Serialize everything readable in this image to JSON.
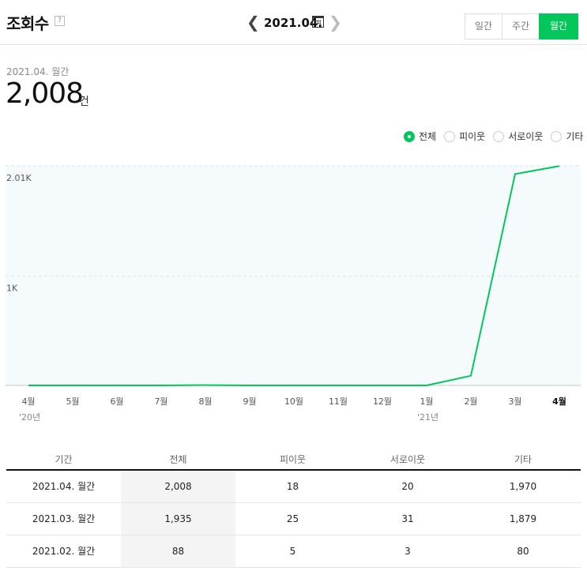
{
  "header": {
    "title": "조회수",
    "help_label": "?",
    "date_label": "2021.04.",
    "periods": [
      "일간",
      "주간",
      "월간"
    ],
    "active_period": "월간"
  },
  "summary": {
    "period_label": "2021.04. 월간",
    "value": "2,008",
    "unit": "건"
  },
  "legend": {
    "items": [
      "전체",
      "피이웃",
      "서로이웃",
      "기타"
    ],
    "selected": "전체"
  },
  "colors": {
    "accent": "#03c75a",
    "chart_bg": "#f5fafd",
    "grid": "#dbe6ee"
  },
  "chart_data": {
    "type": "line",
    "categories": [
      "4월",
      "5월",
      "6월",
      "7월",
      "8월",
      "9월",
      "10월",
      "11월",
      "12월",
      "1월",
      "2월",
      "3월",
      "4월"
    ],
    "year_labels": [
      {
        "index": 0,
        "label": "'20년"
      },
      {
        "index": 9,
        "label": "'21년"
      }
    ],
    "series": [
      {
        "values": [
          0,
          0,
          0,
          0,
          3,
          0,
          0,
          0,
          0,
          0,
          88,
          1935,
          2008
        ]
      }
    ],
    "ylim": [
      0,
      2010
    ],
    "yticks": [
      {
        "value": 1000,
        "label": "1K"
      },
      {
        "value": 2010,
        "label": "2.01K"
      }
    ],
    "highlight_index": 12,
    "grid": true
  },
  "table": {
    "headers": [
      "기간",
      "전체",
      "피이웃",
      "서로이웃",
      "기타"
    ],
    "rows": [
      [
        "2021.04. 월간",
        "2,008",
        "18",
        "20",
        "1,970"
      ],
      [
        "2021.03. 월간",
        "1,935",
        "25",
        "31",
        "1,879"
      ],
      [
        "2021.02. 월간",
        "88",
        "5",
        "3",
        "80"
      ]
    ]
  }
}
